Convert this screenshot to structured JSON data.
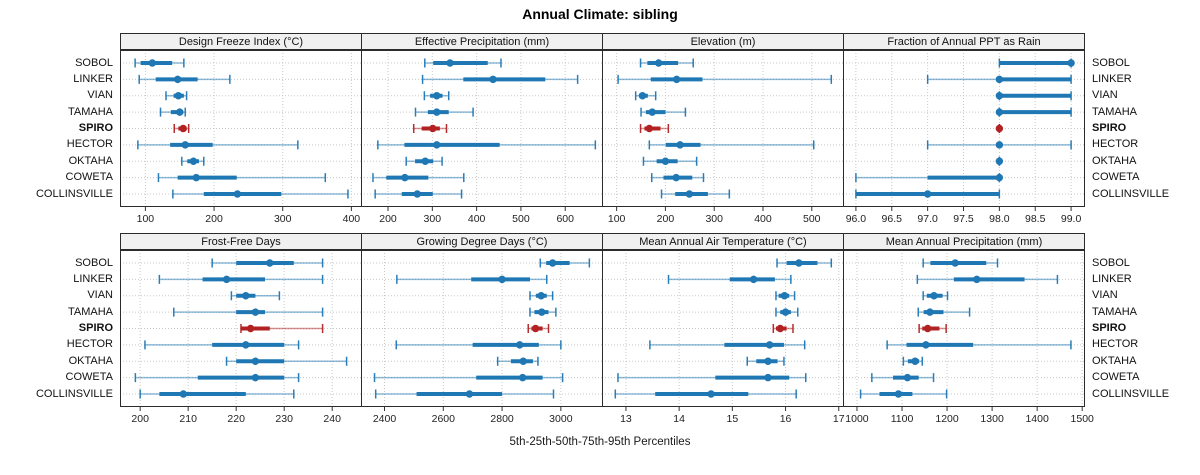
{
  "chart_data": {
    "type": "dotplot-percentiles",
    "title": "Annual Climate: sibling",
    "xlabel": "5th-25th-50th-75th-95th Percentiles",
    "percentiles": [
      5,
      25,
      50,
      75,
      95
    ],
    "sites": [
      "SOBOL",
      "LINKER",
      "VIAN",
      "TAMAHA",
      "SPIRO",
      "HECTOR",
      "OKTAHA",
      "COWETA",
      "COLLINSVILLE"
    ],
    "highlight_site": "SPIRO",
    "colors": {
      "point": "#1f77b4",
      "highlight": "#b22222",
      "grid": "#c8c8c8",
      "header_bg": "#f0f0f0",
      "border": "#2b2b2b",
      "tick": "#333333"
    },
    "layout": {
      "rows": 2,
      "cols": 4,
      "grid": "dotted",
      "site_labels": "left-and-right"
    },
    "panels": [
      {
        "title": "Design Freeze Index (°C)",
        "xlim": [
          63,
          414
        ],
        "ticks": [
          100,
          200,
          300,
          400
        ],
        "tick_labels": [
          "100",
          "200",
          "300",
          "400"
        ],
        "values": [
          [
            85,
            93,
            110,
            139,
            156
          ],
          [
            91,
            115,
            147,
            176,
            223
          ],
          [
            130,
            141,
            148,
            156,
            160
          ],
          [
            122,
            137,
            150,
            155,
            158
          ],
          [
            142,
            148,
            155,
            160,
            163
          ],
          [
            89,
            136,
            158,
            198,
            322
          ],
          [
            153,
            161,
            170,
            178,
            185
          ],
          [
            119,
            147,
            174,
            233,
            362
          ],
          [
            140,
            185,
            234,
            298,
            395
          ]
        ]
      },
      {
        "title": "Effective Precipitation (mm)",
        "xlim": [
          139,
          683
        ],
        "ticks": [
          200,
          300,
          400,
          500,
          600
        ],
        "tick_labels": [
          "200",
          "300",
          "400",
          "500",
          "600"
        ],
        "values": [
          [
            283,
            302,
            340,
            425,
            455
          ],
          [
            278,
            370,
            437,
            555,
            628
          ],
          [
            282,
            295,
            310,
            323,
            337
          ],
          [
            262,
            290,
            310,
            337,
            392
          ],
          [
            258,
            276,
            301,
            317,
            332
          ],
          [
            177,
            237,
            310,
            452,
            668
          ],
          [
            241,
            261,
            284,
            302,
            322
          ],
          [
            166,
            196,
            238,
            291,
            371
          ],
          [
            171,
            231,
            266,
            301,
            366
          ]
        ]
      },
      {
        "title": "Elevation (m)",
        "xlim": [
          70,
          564
        ],
        "ticks": [
          100,
          200,
          300,
          400,
          500
        ],
        "tick_labels": [
          "100",
          "200",
          "300",
          "400",
          "500"
        ],
        "values": [
          [
            149,
            163,
            186,
            226,
            257
          ],
          [
            103,
            170,
            223,
            276,
            540
          ],
          [
            139,
            146,
            153,
            164,
            180
          ],
          [
            150,
            160,
            173,
            200,
            241
          ],
          [
            149,
            157,
            167,
            190,
            206
          ],
          [
            167,
            201,
            230,
            272,
            504
          ],
          [
            155,
            182,
            200,
            225,
            264
          ],
          [
            172,
            196,
            222,
            255,
            278
          ],
          [
            192,
            220,
            249,
            287,
            331
          ]
        ]
      },
      {
        "title": "Fraction of Annual PPT as Rain",
        "xlim": [
          95.82,
          99.18
        ],
        "ticks": [
          96.0,
          96.5,
          97.0,
          97.5,
          98.0,
          98.5,
          99.0
        ],
        "tick_labels": [
          "96.0",
          "96.5",
          "97.0",
          "97.5",
          "98.0",
          "98.5",
          "99.0"
        ],
        "values": [
          [
            98,
            98,
            99,
            99,
            99
          ],
          [
            97,
            98,
            98,
            99,
            99
          ],
          [
            98,
            98,
            98,
            99,
            99
          ],
          [
            98,
            98,
            98,
            99,
            99
          ],
          [
            98,
            98,
            98,
            98,
            98
          ],
          [
            97,
            98,
            98,
            98,
            99
          ],
          [
            98,
            98,
            98,
            98,
            98
          ],
          [
            96,
            97,
            98,
            98,
            98
          ],
          [
            96,
            96,
            97,
            98,
            98
          ]
        ]
      },
      {
        "title": "Frost-Free Days",
        "xlim": [
          195.8,
          246
        ],
        "ticks": [
          200,
          210,
          220,
          230,
          240
        ],
        "tick_labels": [
          "200",
          "210",
          "220",
          "230",
          "240"
        ],
        "values": [
          [
            215,
            220,
            227,
            232,
            238
          ],
          [
            204,
            213,
            218,
            226,
            238
          ],
          [
            219,
            220,
            222,
            224,
            229
          ],
          [
            207,
            220,
            224,
            226,
            238
          ],
          [
            221,
            221,
            223,
            227,
            238
          ],
          [
            201,
            215,
            222,
            230,
            233
          ],
          [
            218,
            220,
            224,
            230,
            243
          ],
          [
            199,
            212,
            224,
            230,
            233
          ],
          [
            200,
            204,
            209,
            222,
            232
          ]
        ]
      },
      {
        "title": "Growing Degree Days (°C)",
        "xlim": [
          2320,
          3140
        ],
        "ticks": [
          2400,
          2600,
          2800,
          3000
        ],
        "tick_labels": [
          "2400",
          "2600",
          "2800",
          "3000"
        ],
        "values": [
          [
            2930,
            2950,
            2972,
            3030,
            3097
          ],
          [
            2442,
            2695,
            2800,
            2895,
            2952
          ],
          [
            2895,
            2915,
            2933,
            2952,
            2972
          ],
          [
            2895,
            2910,
            2935,
            2958,
            2983
          ],
          [
            2889,
            2900,
            2914,
            2938,
            2958
          ],
          [
            2440,
            2700,
            2860,
            2925,
            3000
          ],
          [
            2785,
            2830,
            2872,
            2905,
            2922
          ],
          [
            2366,
            2712,
            2870,
            2938,
            3006
          ],
          [
            2370,
            2509,
            2689,
            2800,
            2975
          ]
        ]
      },
      {
        "title": "Mean Annual Air Temperature (°C)",
        "xlim": [
          12.55,
          17.08
        ],
        "ticks": [
          13,
          14,
          15,
          16,
          17
        ],
        "tick_labels": [
          "13",
          "14",
          "15",
          "16",
          "17"
        ],
        "values": [
          [
            15.84,
            16.02,
            16.25,
            16.6,
            16.86
          ],
          [
            13.8,
            14.95,
            15.4,
            15.8,
            16.1
          ],
          [
            15.82,
            15.87,
            15.98,
            16.07,
            16.17
          ],
          [
            15.82,
            15.9,
            16.0,
            16.1,
            16.23
          ],
          [
            15.77,
            15.82,
            15.9,
            16.02,
            16.14
          ],
          [
            13.45,
            14.85,
            15.7,
            15.97,
            16.36
          ],
          [
            15.28,
            15.45,
            15.67,
            15.85,
            15.97
          ],
          [
            12.85,
            14.68,
            15.67,
            16.07,
            16.38
          ],
          [
            12.8,
            13.55,
            14.6,
            15.3,
            16.2
          ]
        ]
      },
      {
        "title": "Mean Annual Precipitation (mm)",
        "xlim": [
          969,
          1504
        ],
        "ticks": [
          1000,
          1100,
          1200,
          1300,
          1400,
          1500
        ],
        "tick_labels": [
          "1000",
          "1100",
          "1200",
          "1300",
          "1400",
          "1500"
        ],
        "values": [
          [
            1147,
            1163,
            1218,
            1287,
            1312
          ],
          [
            1134,
            1215,
            1266,
            1372,
            1445
          ],
          [
            1147,
            1155,
            1171,
            1190,
            1201
          ],
          [
            1136,
            1148,
            1162,
            1192,
            1250
          ],
          [
            1138,
            1145,
            1157,
            1183,
            1198
          ],
          [
            1067,
            1110,
            1153,
            1258,
            1475
          ],
          [
            1103,
            1113,
            1129,
            1138,
            1145
          ],
          [
            1033,
            1080,
            1112,
            1137,
            1170
          ],
          [
            1008,
            1050,
            1092,
            1123,
            1199
          ]
        ]
      }
    ]
  }
}
